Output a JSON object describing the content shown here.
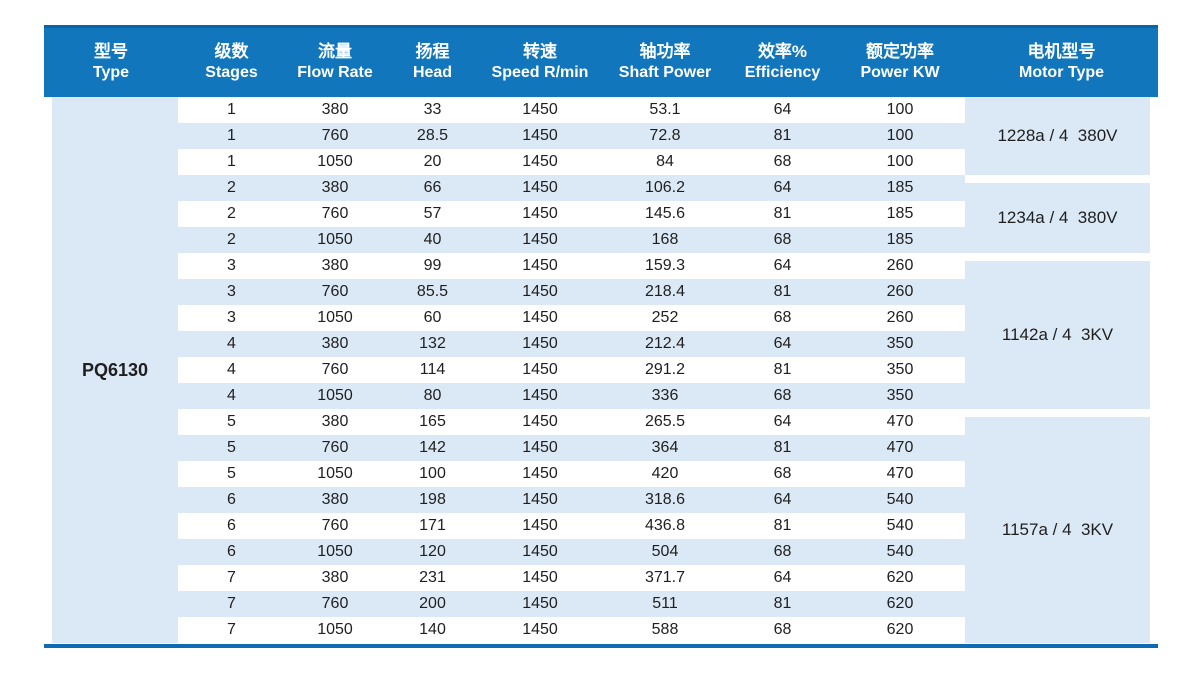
{
  "table": {
    "columns": [
      {
        "zh": "型号",
        "en": "Type"
      },
      {
        "zh": "级数",
        "en": "Stages"
      },
      {
        "zh": "流量",
        "en": "Flow Rate"
      },
      {
        "zh": "扬程",
        "en": "Head"
      },
      {
        "zh": "转速",
        "en": "Speed R/min"
      },
      {
        "zh": "轴功率",
        "en": "Shaft Power"
      },
      {
        "zh": "效率%",
        "en": "Efficiency"
      },
      {
        "zh": "额定功率",
        "en": "Power KW"
      },
      {
        "zh": "电机型号",
        "en": "Motor Type"
      }
    ],
    "type_label": "PQ6130",
    "rows": [
      [
        "1",
        "380",
        "33",
        "1450",
        "53.1",
        "64",
        "100"
      ],
      [
        "1",
        "760",
        "28.5",
        "1450",
        "72.8",
        "81",
        "100"
      ],
      [
        "1",
        "1050",
        "20",
        "1450",
        "84",
        "68",
        "100"
      ],
      [
        "2",
        "380",
        "66",
        "1450",
        "106.2",
        "64",
        "185"
      ],
      [
        "2",
        "760",
        "57",
        "1450",
        "145.6",
        "81",
        "185"
      ],
      [
        "2",
        "1050",
        "40",
        "1450",
        "168",
        "68",
        "185"
      ],
      [
        "3",
        "380",
        "99",
        "1450",
        "159.3",
        "64",
        "260"
      ],
      [
        "3",
        "760",
        "85.5",
        "1450",
        "218.4",
        "81",
        "260"
      ],
      [
        "3",
        "1050",
        "60",
        "1450",
        "252",
        "68",
        "260"
      ],
      [
        "4",
        "380",
        "132",
        "1450",
        "212.4",
        "64",
        "350"
      ],
      [
        "4",
        "760",
        "114",
        "1450",
        "291.2",
        "81",
        "350"
      ],
      [
        "4",
        "1050",
        "80",
        "1450",
        "336",
        "68",
        "350"
      ],
      [
        "5",
        "380",
        "165",
        "1450",
        "265.5",
        "64",
        "470"
      ],
      [
        "5",
        "760",
        "142",
        "1450",
        "364",
        "81",
        "470"
      ],
      [
        "5",
        "1050",
        "100",
        "1450",
        "420",
        "68",
        "470"
      ],
      [
        "6",
        "380",
        "198",
        "1450",
        "318.6",
        "64",
        "540"
      ],
      [
        "6",
        "760",
        "171",
        "1450",
        "436.8",
        "81",
        "540"
      ],
      [
        "6",
        "1050",
        "120",
        "1450",
        "504",
        "68",
        "540"
      ],
      [
        "7",
        "380",
        "231",
        "1450",
        "371.7",
        "64",
        "620"
      ],
      [
        "7",
        "760",
        "200",
        "1450",
        "511",
        "81",
        "620"
      ],
      [
        "7",
        "1050",
        "140",
        "1450",
        "588",
        "68",
        "620"
      ]
    ],
    "motor_groups": [
      {
        "label": "1228a / 4  380V",
        "rows": 3
      },
      {
        "label": "1234a / 4  380V",
        "rows": 3
      },
      {
        "label": "1142a / 4  3KV",
        "rows": 6
      },
      {
        "label": "1157a / 4  3KV",
        "rows": 9
      }
    ]
  },
  "colors": {
    "header_bg": "#1276bd",
    "header_top_line": "#0a63a6",
    "stripe_bg": "#dbe8f5",
    "bottom_line": "#0e6ab2",
    "text": "#1f1f1f",
    "header_text": "#ffffff"
  }
}
